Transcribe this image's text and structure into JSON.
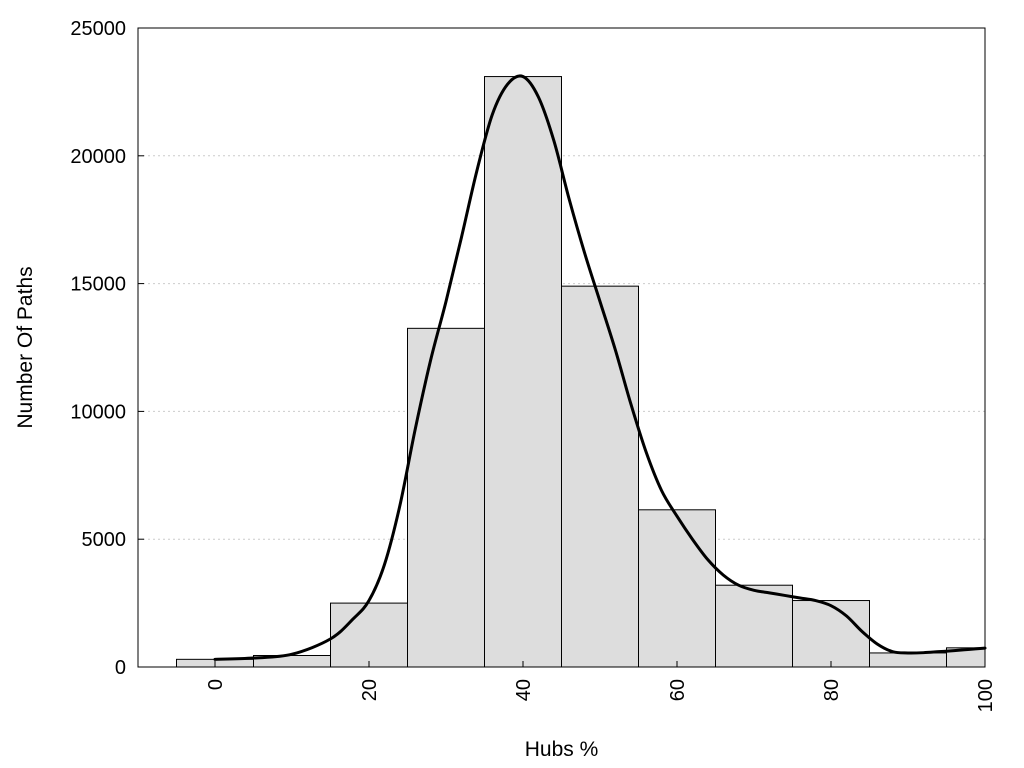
{
  "chart_data": {
    "type": "bar",
    "title": "",
    "xlabel": "Hubs %",
    "ylabel": "Number Of Paths",
    "x_ticks": [
      "0",
      "20",
      "40",
      "60",
      "80",
      "100"
    ],
    "y_ticks": [
      "0",
      "5000",
      "10000",
      "15000",
      "20000",
      "25000"
    ],
    "xlim": [
      -10,
      100
    ],
    "ylim": [
      0,
      25000
    ],
    "grid": "horizontal dotted",
    "bin_width": 10,
    "categories": [
      0,
      10,
      20,
      30,
      40,
      50,
      60,
      70,
      80,
      90,
      100
    ],
    "values": [
      300,
      450,
      2500,
      13250,
      23100,
      14900,
      6150,
      3200,
      2600,
      550,
      750
    ],
    "density_curve": {
      "x": [
        0,
        5,
        10,
        15,
        18,
        20,
        22,
        24,
        26,
        28,
        30,
        32,
        34,
        36,
        38,
        40,
        42,
        44,
        46,
        48,
        50,
        52,
        54,
        56,
        58,
        60,
        62,
        64,
        66,
        68,
        70,
        72,
        74,
        76,
        78,
        80,
        82,
        84,
        86,
        88,
        90,
        92,
        94,
        96,
        98,
        100
      ],
      "y": [
        300,
        350,
        500,
        1100,
        1900,
        2600,
        4000,
        6300,
        9300,
        12000,
        14300,
        16800,
        19400,
        21600,
        22800,
        23100,
        22300,
        20600,
        18300,
        16200,
        14300,
        12400,
        10300,
        8400,
        6900,
        5900,
        5000,
        4200,
        3600,
        3200,
        3000,
        2900,
        2800,
        2700,
        2600,
        2400,
        2000,
        1400,
        900,
        600,
        550,
        560,
        600,
        640,
        690,
        740
      ]
    },
    "colors": {
      "bar_fill": "#dddddd",
      "bar_stroke": "#000000",
      "curve": "#000000",
      "grid": "#cccccc"
    }
  }
}
